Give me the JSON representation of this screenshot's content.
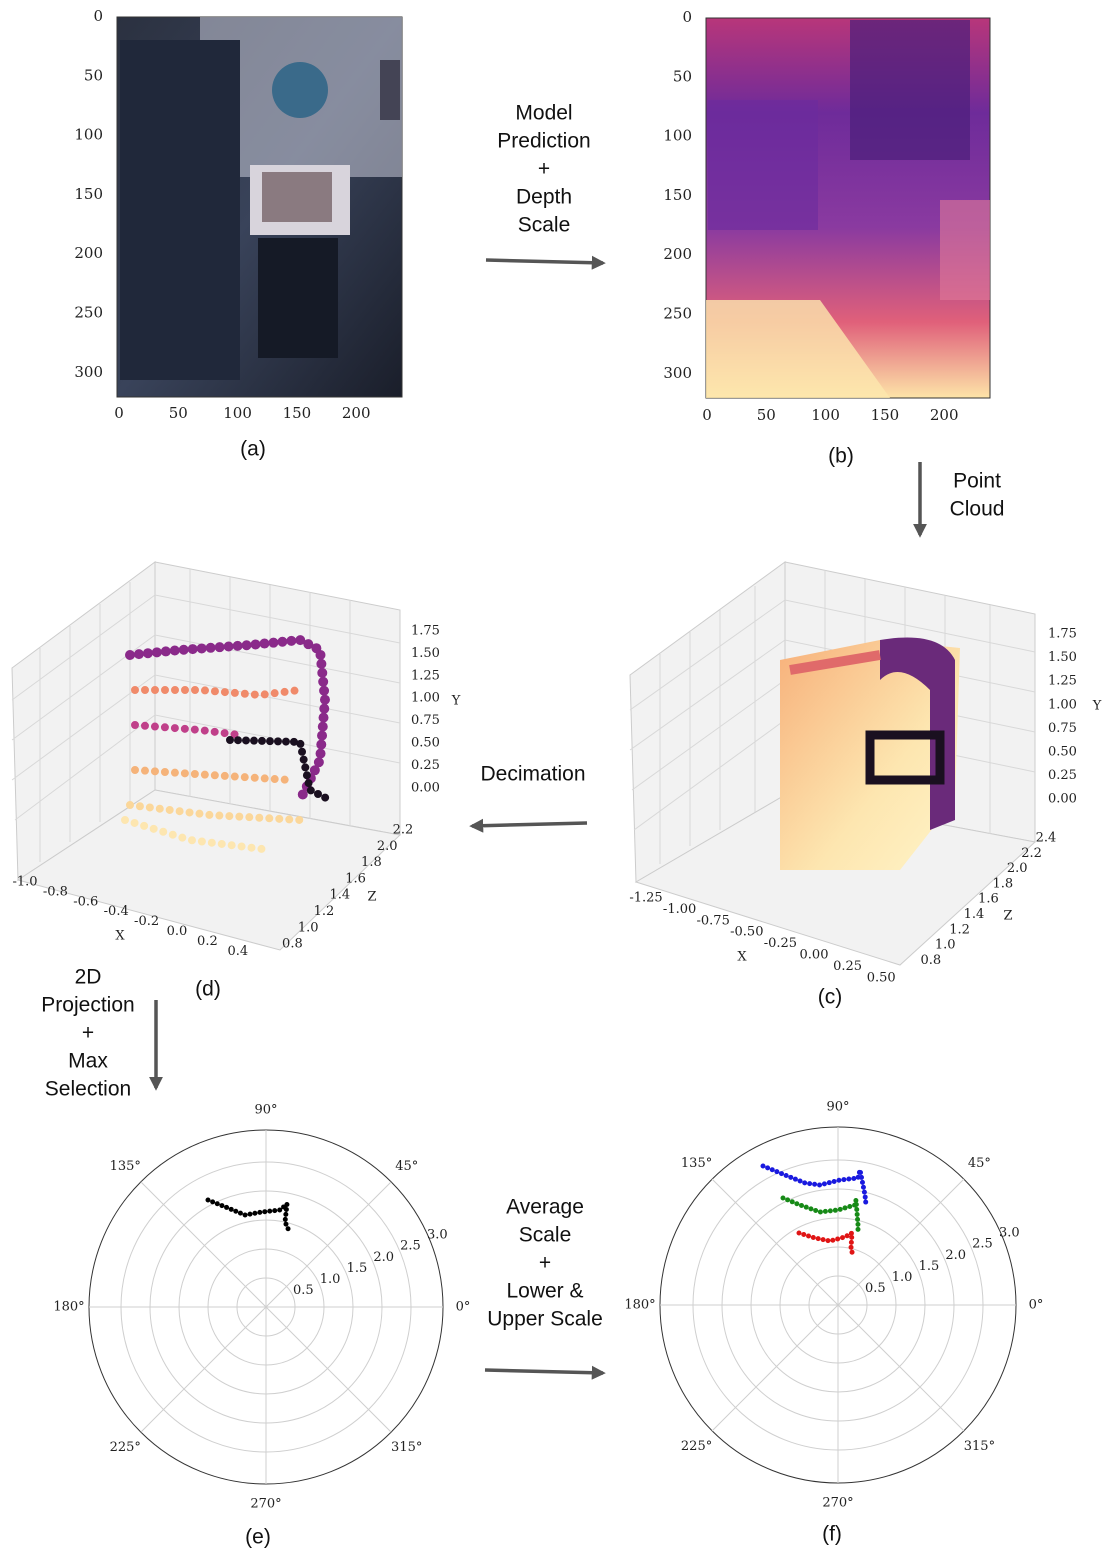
{
  "panels": {
    "a": {
      "caption": "(a)",
      "x_ticks": [
        "0",
        "50",
        "100",
        "150",
        "200"
      ],
      "y_ticks": [
        "0",
        "50",
        "100",
        "150",
        "200",
        "250",
        "300"
      ]
    },
    "b": {
      "caption": "(b)",
      "x_ticks": [
        "0",
        "50",
        "100",
        "150",
        "200"
      ],
      "y_ticks": [
        "0",
        "50",
        "100",
        "150",
        "200",
        "250",
        "300"
      ]
    },
    "c": {
      "caption": "(c)",
      "x_label": "X",
      "y_label": "Y",
      "z_label": "Z",
      "x_ticks": [
        "-1.25",
        "-1.00",
        "-0.75",
        "-0.50",
        "-0.25",
        "0.00",
        "0.25",
        "0.50"
      ],
      "y_ticks": [
        "1.75",
        "1.50",
        "1.25",
        "1.00",
        "0.75",
        "0.50",
        "0.25",
        "0.00"
      ],
      "z_ticks": [
        "2.4",
        "2.2",
        "2.0",
        "1.8",
        "1.6",
        "1.4",
        "1.2",
        "1.0",
        "0.8"
      ]
    },
    "d": {
      "caption": "(d)",
      "x_label": "X",
      "y_label": "Y",
      "z_label": "Z",
      "x_ticks": [
        "-1.0",
        "-0.8",
        "-0.6",
        "-0.4",
        "-0.2",
        "0.0",
        "0.2",
        "0.4"
      ],
      "y_ticks": [
        "1.75",
        "1.50",
        "1.25",
        "1.00",
        "0.75",
        "0.50",
        "0.25",
        "0.00"
      ],
      "z_ticks": [
        "2.2",
        "2.0",
        "1.8",
        "1.6",
        "1.4",
        "1.2",
        "1.0",
        "0.8"
      ]
    },
    "e": {
      "caption": "(e)",
      "angle_labels": [
        "90°",
        "45°",
        "0°",
        "315°",
        "270°",
        "225°",
        "180°",
        "135°"
      ],
      "radius_labels": [
        "0.5",
        "1.0",
        "1.5",
        "2.0",
        "2.5",
        "3.0"
      ]
    },
    "f": {
      "caption": "(f)",
      "angle_labels": [
        "90°",
        "45°",
        "0°",
        "315°",
        "270°",
        "225°",
        "180°",
        "135°"
      ],
      "radius_labels": [
        "0.5",
        "1.0",
        "1.5",
        "2.0",
        "2.5",
        "3.0"
      ]
    }
  },
  "steps": {
    "prediction": [
      "Model",
      "Prediction",
      "+",
      "Depth",
      "Scale"
    ],
    "point_cloud": [
      "Point",
      "Cloud"
    ],
    "decimation": [
      "Decimation"
    ],
    "projection": [
      "2D",
      "Projection",
      "+",
      "Max",
      "Selection"
    ],
    "scaling": [
      "Average",
      "Scale",
      "+",
      "Lower &",
      "Upper Scale"
    ]
  }
}
